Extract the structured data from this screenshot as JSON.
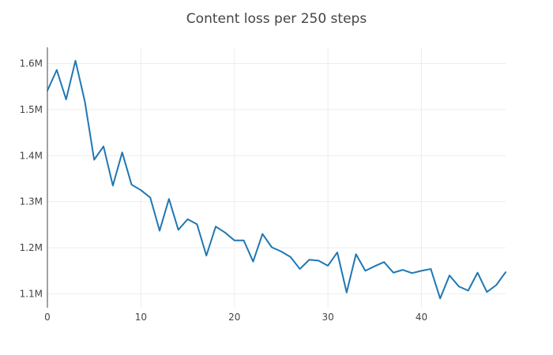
{
  "chart_data": {
    "type": "line",
    "title": "Content loss per 250 steps",
    "xlabel": "",
    "ylabel": "",
    "x": [
      0,
      1,
      2,
      3,
      4,
      5,
      6,
      7,
      8,
      9,
      10,
      11,
      12,
      13,
      14,
      15,
      16,
      17,
      18,
      19,
      20,
      21,
      22,
      23,
      24,
      25,
      26,
      27,
      28,
      29,
      30,
      31,
      32,
      33,
      34,
      35,
      36,
      37,
      38,
      39,
      40,
      41,
      42,
      43,
      44,
      45,
      46,
      47,
      48,
      49
    ],
    "series": [
      {
        "values": [
          1541000,
          1586000,
          1522000,
          1606000,
          1518000,
          1391000,
          1420000,
          1335000,
          1407000,
          1337000,
          1325000,
          1309000,
          1237000,
          1306000,
          1239000,
          1262000,
          1251000,
          1183000,
          1246000,
          1233000,
          1216000,
          1216000,
          1170000,
          1230000,
          1201000,
          1192000,
          1180000,
          1154000,
          1174000,
          1172000,
          1161000,
          1190000,
          1103000,
          1186000,
          1150000,
          1160000,
          1169000,
          1146000,
          1152000,
          1145000,
          1150000,
          1154000,
          1090000,
          1140000,
          1116000,
          1107000,
          1146000,
          1104000,
          1119000,
          1147000
        ],
        "color": "#1f77b4"
      }
    ],
    "xlim": [
      0,
      49
    ],
    "ylim": [
      1070000,
      1635000
    ],
    "x_ticks": [
      0,
      10,
      20,
      30,
      40
    ],
    "x_tick_labels": [
      "0",
      "10",
      "20",
      "30",
      "40"
    ],
    "y_ticks": [
      1100000,
      1200000,
      1300000,
      1400000,
      1500000,
      1600000
    ],
    "y_tick_labels": [
      "1.1M",
      "1.2M",
      "1.3M",
      "1.4M",
      "1.5M",
      "1.6M"
    ],
    "grid": true,
    "legend": "none"
  }
}
